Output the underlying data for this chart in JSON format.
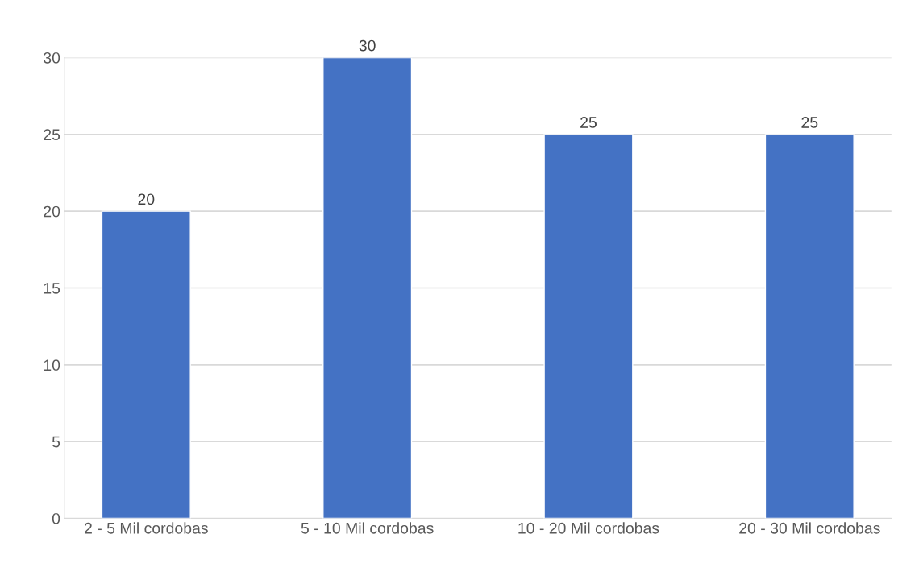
{
  "chart_data": {
    "type": "bar",
    "categories": [
      "2 - 5 Mil cordobas",
      "5 - 10 Mil cordobas",
      "10 - 20 Mil cordobas",
      "20 - 30 Mil cordobas"
    ],
    "values": [
      20,
      30,
      25,
      25
    ],
    "color": "#4472c4",
    "ylim": [
      0,
      30
    ],
    "yticks": [
      0,
      5,
      10,
      15,
      20,
      25,
      30
    ],
    "grid": "y",
    "data_labels": true
  }
}
